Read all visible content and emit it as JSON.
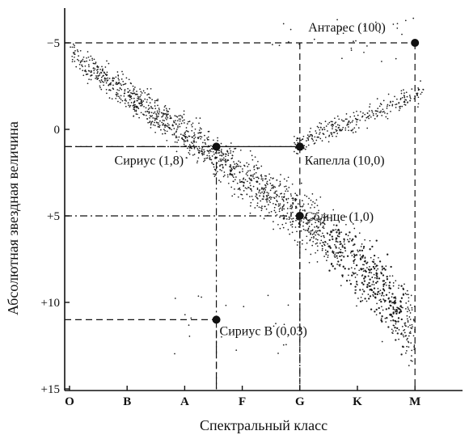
{
  "chart_data": {
    "type": "scatter",
    "title": "",
    "xlabel": "Спектральный класс",
    "ylabel": "Абсолютная звездная величина",
    "x_categories": [
      "O",
      "B",
      "A",
      "F",
      "G",
      "K",
      "M"
    ],
    "y_ticks": [
      {
        "value": -5,
        "label": "−5"
      },
      {
        "value": 0,
        "label": "0"
      },
      {
        "value": 5,
        "label": "+5"
      },
      {
        "value": 10,
        "label": "+10"
      },
      {
        "value": 15,
        "label": "+15"
      }
    ],
    "ylim": [
      -6.8,
      15.3
    ],
    "y_inverted": true,
    "grid": false,
    "labeled_stars": [
      {
        "name": "Антарес",
        "value": "(100)",
        "label": "Антарес (100)",
        "x": 6.0,
        "y": -5.0
      },
      {
        "name": "Сириус",
        "value": "(1,8)",
        "label": "Сириус (1,8)",
        "x": 2.55,
        "y": 1.0
      },
      {
        "name": "Капелла",
        "value": "(10,0)",
        "label": "Капелла (10,0)",
        "x": 4.0,
        "y": 1.0
      },
      {
        "name": "Солнце",
        "value": "(1,0)",
        "label": "Солнце (1,0)",
        "x": 4.0,
        "y": 5.0
      },
      {
        "name": "Сириус В",
        "value": "(0,03)",
        "label": "Сириус В (0,03)",
        "x": 2.55,
        "y": 11.0
      }
    ],
    "point_clouds": [
      {
        "group": "main sequence",
        "x_range": [
          0,
          6.0
        ],
        "y_range": [
          -4.4,
          13.2
        ],
        "approx_points": 1800
      },
      {
        "group": "giants",
        "x_range": [
          3.9,
          6.2
        ],
        "y_range": [
          -4.0,
          1.5
        ],
        "approx_points": 280
      },
      {
        "group": "supergiants",
        "x_range": [
          3.5,
          6.0
        ],
        "y_range": [
          -6.5,
          -4.0
        ],
        "approx_points": 30
      },
      {
        "group": "white dwarfs",
        "x_range": [
          1.8,
          4.0
        ],
        "y_range": [
          9.5,
          13.0
        ],
        "approx_points": 20
      }
    ],
    "colors": {
      "ink": "#111111",
      "dots": "#1a1a1a"
    }
  }
}
